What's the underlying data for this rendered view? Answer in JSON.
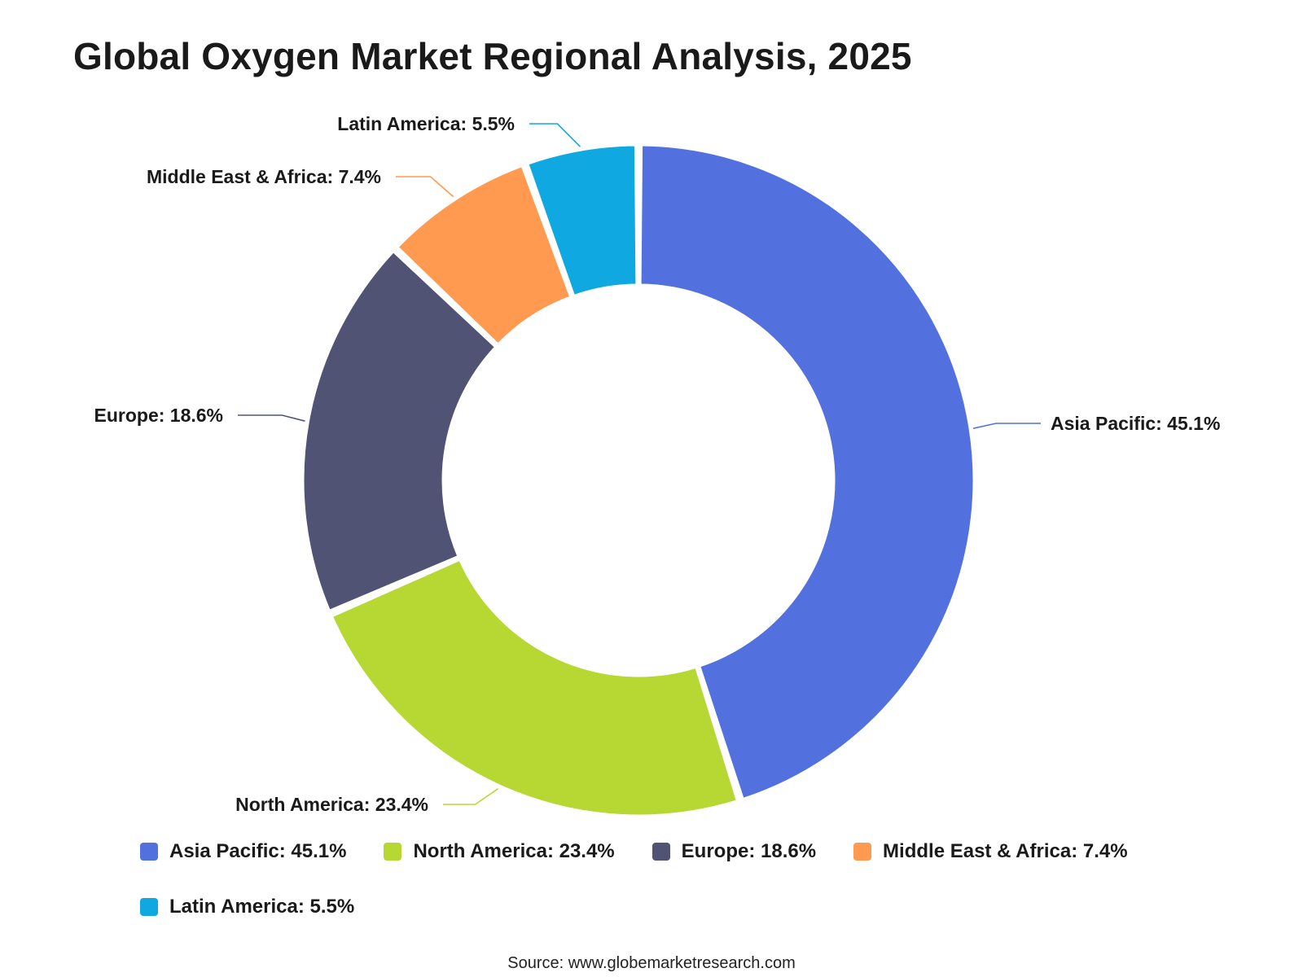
{
  "title": "Global Oxygen Market Regional Analysis, 2025",
  "source": "Source: www.globemarketresearch.com",
  "chart_data": {
    "type": "pie",
    "variant": "donut",
    "title": "Global Oxygen Market Regional Analysis, 2025",
    "unit": "%",
    "categories": [
      "Asia Pacific",
      "North America",
      "Europe",
      "Middle East & Africa",
      "Latin America"
    ],
    "values": [
      45.1,
      23.4,
      18.6,
      7.4,
      5.5
    ],
    "labels": [
      "Asia Pacific: 45.1%",
      "North America: 23.4%",
      "Europe: 18.6%",
      "Middle East & Africa: 7.4%",
      "Latin America: 5.5%"
    ],
    "colors": [
      "#5271de",
      "#b7d733",
      "#505373",
      "#ff9a50",
      "#0fa8e0"
    ],
    "legend_position": "bottom",
    "start_angle": "top, clockwise"
  }
}
